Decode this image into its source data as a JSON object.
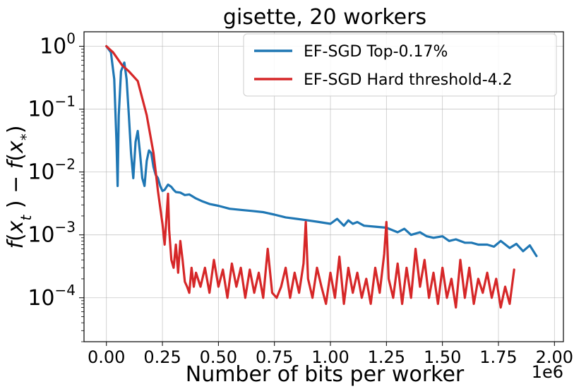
{
  "chart_data": {
    "type": "line",
    "title": "gisette, 20 workers",
    "xlabel": "Number of bits per worker",
    "ylabel": "f(x_t) − f(x_*)",
    "x_offset_label": "1e6",
    "xlim": [
      -0.1,
      2.04
    ],
    "ylim": [
      2e-05,
      1.7
    ],
    "yscale": "log",
    "grid": true,
    "legend_position": "top-right",
    "x_ticks": [
      0.0,
      0.25,
      0.5,
      0.75,
      1.0,
      1.25,
      1.5,
      1.75,
      2.0
    ],
    "x_tick_labels": [
      "0.00",
      "0.25",
      "0.50",
      "0.75",
      "1.00",
      "1.25",
      "1.50",
      "1.75",
      "2.00"
    ],
    "y_ticks": [
      1,
      0.1,
      0.01,
      0.001,
      0.0001
    ],
    "y_tick_labels": [
      {
        "base": "10",
        "exp": "0"
      },
      {
        "base": "10",
        "exp": "−1"
      },
      {
        "base": "10",
        "exp": "−2"
      },
      {
        "base": "10",
        "exp": "−3"
      },
      {
        "base": "10",
        "exp": "−4"
      }
    ],
    "series": [
      {
        "name": "EF-SGD Top-0.17%",
        "color": "#1f77b4",
        "x": [
          0.0,
          0.02,
          0.035,
          0.045,
          0.05,
          0.055,
          0.065,
          0.08,
          0.09,
          0.1,
          0.11,
          0.12,
          0.13,
          0.14,
          0.15,
          0.16,
          0.17,
          0.18,
          0.19,
          0.2,
          0.21,
          0.22,
          0.23,
          0.24,
          0.25,
          0.26,
          0.275,
          0.29,
          0.3,
          0.31,
          0.33,
          0.35,
          0.37,
          0.4,
          0.43,
          0.46,
          0.5,
          0.55,
          0.6,
          0.65,
          0.7,
          0.75,
          0.8,
          0.85,
          0.9,
          0.95,
          1.0,
          1.03,
          1.06,
          1.08,
          1.1,
          1.12,
          1.15,
          1.2,
          1.25,
          1.3,
          1.33,
          1.36,
          1.4,
          1.43,
          1.46,
          1.5,
          1.53,
          1.56,
          1.6,
          1.63,
          1.66,
          1.7,
          1.73,
          1.76,
          1.8,
          1.83,
          1.86,
          1.89,
          1.92
        ],
        "y": [
          1.0,
          0.8,
          0.3,
          0.03,
          0.006,
          0.08,
          0.4,
          0.55,
          0.3,
          0.08,
          0.02,
          0.008,
          0.03,
          0.045,
          0.02,
          0.008,
          0.006,
          0.015,
          0.022,
          0.02,
          0.012,
          0.009,
          0.008,
          0.006,
          0.005,
          0.0052,
          0.0063,
          0.0058,
          0.0052,
          0.0048,
          0.0047,
          0.0043,
          0.0044,
          0.0038,
          0.0034,
          0.0031,
          0.0029,
          0.0026,
          0.0025,
          0.0024,
          0.0023,
          0.0021,
          0.0019,
          0.0018,
          0.0017,
          0.0016,
          0.0015,
          0.0018,
          0.0014,
          0.0017,
          0.0015,
          0.0016,
          0.0014,
          0.00135,
          0.0013,
          0.0011,
          0.00125,
          0.001,
          0.0011,
          0.00095,
          0.0009,
          0.00095,
          0.0008,
          0.00085,
          0.00075,
          0.00075,
          0.0007,
          0.0007,
          0.00065,
          0.0008,
          0.00062,
          0.00072,
          0.00055,
          0.00068,
          0.00046
        ]
      },
      {
        "name": "EF-SGD Hard threshold-4.2",
        "color": "#d62728",
        "x": [
          0.0,
          0.03,
          0.07,
          0.1,
          0.14,
          0.18,
          0.21,
          0.23,
          0.25,
          0.26,
          0.27,
          0.275,
          0.28,
          0.29,
          0.3,
          0.31,
          0.32,
          0.33,
          0.34,
          0.35,
          0.36,
          0.37,
          0.38,
          0.39,
          0.4,
          0.42,
          0.44,
          0.46,
          0.48,
          0.5,
          0.52,
          0.54,
          0.56,
          0.58,
          0.6,
          0.62,
          0.64,
          0.66,
          0.68,
          0.7,
          0.72,
          0.74,
          0.76,
          0.78,
          0.8,
          0.82,
          0.84,
          0.86,
          0.88,
          0.89,
          0.9,
          0.92,
          0.94,
          0.96,
          0.98,
          1.0,
          1.02,
          1.04,
          1.06,
          1.08,
          1.1,
          1.12,
          1.14,
          1.16,
          1.18,
          1.2,
          1.22,
          1.24,
          1.25,
          1.26,
          1.28,
          1.3,
          1.32,
          1.34,
          1.36,
          1.38,
          1.4,
          1.42,
          1.44,
          1.46,
          1.48,
          1.5,
          1.52,
          1.54,
          1.56,
          1.58,
          1.6,
          1.62,
          1.64,
          1.66,
          1.68,
          1.7,
          1.72,
          1.74,
          1.76,
          1.78,
          1.8,
          1.82
        ],
        "y": [
          1.0,
          0.8,
          0.5,
          0.4,
          0.28,
          0.08,
          0.02,
          0.005,
          0.0015,
          0.0007,
          0.0024,
          0.0045,
          0.0012,
          0.0004,
          0.0003,
          0.0007,
          0.00025,
          0.0008,
          0.0004,
          0.00018,
          0.00015,
          0.00012,
          0.0003,
          0.00015,
          0.00025,
          0.00015,
          0.0003,
          0.00012,
          0.0004,
          0.00015,
          0.00028,
          0.0001,
          0.00035,
          0.00015,
          0.0003,
          0.0001,
          0.00028,
          0.00012,
          0.00025,
          0.0001,
          0.0006,
          0.00012,
          0.0001,
          0.00015,
          0.0003,
          0.0001,
          0.00025,
          0.00012,
          0.00035,
          0.0016,
          0.0002,
          0.0001,
          0.0003,
          0.00015,
          8e-05,
          0.00025,
          0.0001,
          0.00045,
          8e-05,
          0.0003,
          0.00012,
          0.00025,
          0.0001,
          0.0002,
          8e-05,
          0.0003,
          0.00012,
          0.0005,
          0.0016,
          0.0002,
          0.0001,
          0.00035,
          8e-05,
          0.0003,
          0.0001,
          0.0006,
          0.00015,
          0.0004,
          0.0001,
          0.00025,
          8e-05,
          0.0003,
          0.0001,
          0.0002,
          7e-05,
          0.0004,
          0.0001,
          0.0003,
          8e-05,
          0.0002,
          0.00012,
          0.00025,
          0.0001,
          0.0002,
          7e-05,
          0.00015,
          8e-05,
          0.00028
        ]
      }
    ]
  }
}
